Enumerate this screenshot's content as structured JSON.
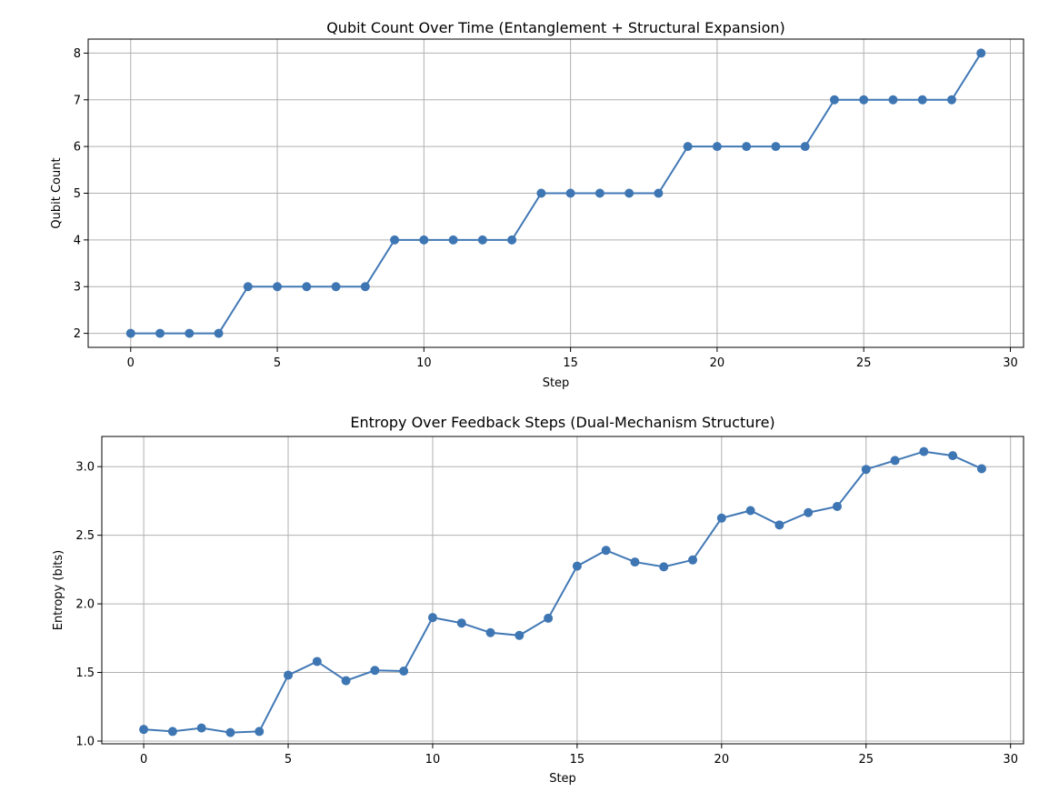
{
  "chart_data": [
    {
      "type": "line",
      "title": "Qubit Count Over Time (Entanglement + Structural Expansion)",
      "xlabel": "Step",
      "ylabel": "Qubit Count",
      "xlim": [
        -1.45,
        30.45
      ],
      "ylim": [
        1.7,
        8.3
      ],
      "xticks": [
        0,
        5,
        10,
        15,
        20,
        25,
        30
      ],
      "yticks": [
        2,
        3,
        4,
        5,
        6,
        7,
        8
      ],
      "ytick_labels": [
        "2",
        "3",
        "4",
        "5",
        "6",
        "7",
        "8"
      ],
      "grid": true,
      "color": "#3e76b3",
      "marker": "circle",
      "x": [
        0,
        1,
        2,
        3,
        4,
        5,
        6,
        7,
        8,
        9,
        10,
        11,
        12,
        13,
        14,
        15,
        16,
        17,
        18,
        19,
        20,
        21,
        22,
        23,
        24,
        25,
        26,
        27,
        28,
        29
      ],
      "y": [
        2,
        2,
        2,
        2,
        3,
        3,
        3,
        3,
        3,
        4,
        4,
        4,
        4,
        4,
        5,
        5,
        5,
        5,
        5,
        6,
        6,
        6,
        6,
        6,
        7,
        7,
        7,
        7,
        7,
        8
      ]
    },
    {
      "type": "line",
      "title": "Entropy Over Feedback Steps (Dual-Mechanism Structure)",
      "xlabel": "Step",
      "ylabel": "Entropy (bits)",
      "xlim": [
        -1.45,
        30.45
      ],
      "ylim": [
        0.98,
        3.22
      ],
      "xticks": [
        0,
        5,
        10,
        15,
        20,
        25,
        30
      ],
      "yticks": [
        1.0,
        1.5,
        2.0,
        2.5,
        3.0
      ],
      "ytick_labels": [
        "1.0",
        "1.5",
        "2.0",
        "2.5",
        "3.0"
      ],
      "grid": true,
      "color": "#3e76b3",
      "marker": "circle",
      "x": [
        0,
        1,
        2,
        3,
        4,
        5,
        6,
        7,
        8,
        9,
        10,
        11,
        12,
        13,
        14,
        15,
        16,
        17,
        18,
        19,
        20,
        21,
        22,
        23,
        24,
        25,
        26,
        27,
        28,
        29
      ],
      "y": [
        1.085,
        1.07,
        1.095,
        1.062,
        1.07,
        1.48,
        1.58,
        1.44,
        1.515,
        1.51,
        1.9,
        1.86,
        1.79,
        1.77,
        1.895,
        2.275,
        2.39,
        2.305,
        2.27,
        2.32,
        2.625,
        2.68,
        2.575,
        2.665,
        2.71,
        2.98,
        3.045,
        3.11,
        3.08,
        2.985
      ]
    }
  ]
}
